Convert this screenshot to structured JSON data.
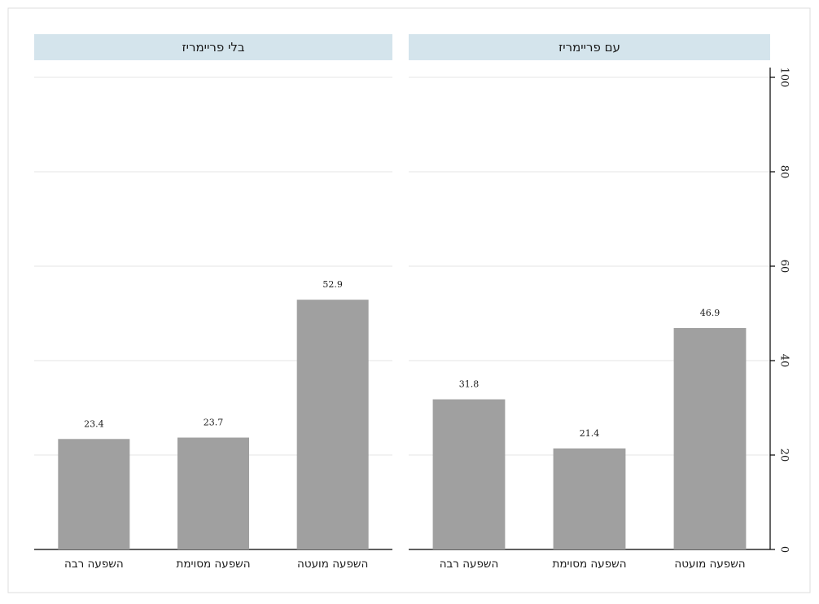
{
  "chart_data": {
    "type": "bar",
    "ylim": [
      0,
      100
    ],
    "yticks": [
      0,
      20,
      40,
      60,
      80,
      100
    ],
    "grid": true,
    "colors": {
      "bar": "#a0a0a0",
      "header": "#d4e4ec",
      "grid": "#e6e6e6",
      "axis": "#000000",
      "outer_border": "#dcdcdc"
    },
    "panels": [
      {
        "title": "בלי פריימריז",
        "categories": [
          "השפעה רבה",
          "השפעה מסוימת",
          "השפעה מועטה"
        ],
        "values": [
          23.4,
          23.7,
          52.9
        ],
        "value_labels": [
          "23.4",
          "23.7",
          "52.9"
        ]
      },
      {
        "title": "עם פריימריז",
        "categories": [
          "השפעה רבה",
          "השפעה מסוימת",
          "השפעה מועטה"
        ],
        "values": [
          31.8,
          21.4,
          46.9
        ],
        "value_labels": [
          "31.8",
          "21.4",
          "46.9"
        ]
      }
    ]
  }
}
